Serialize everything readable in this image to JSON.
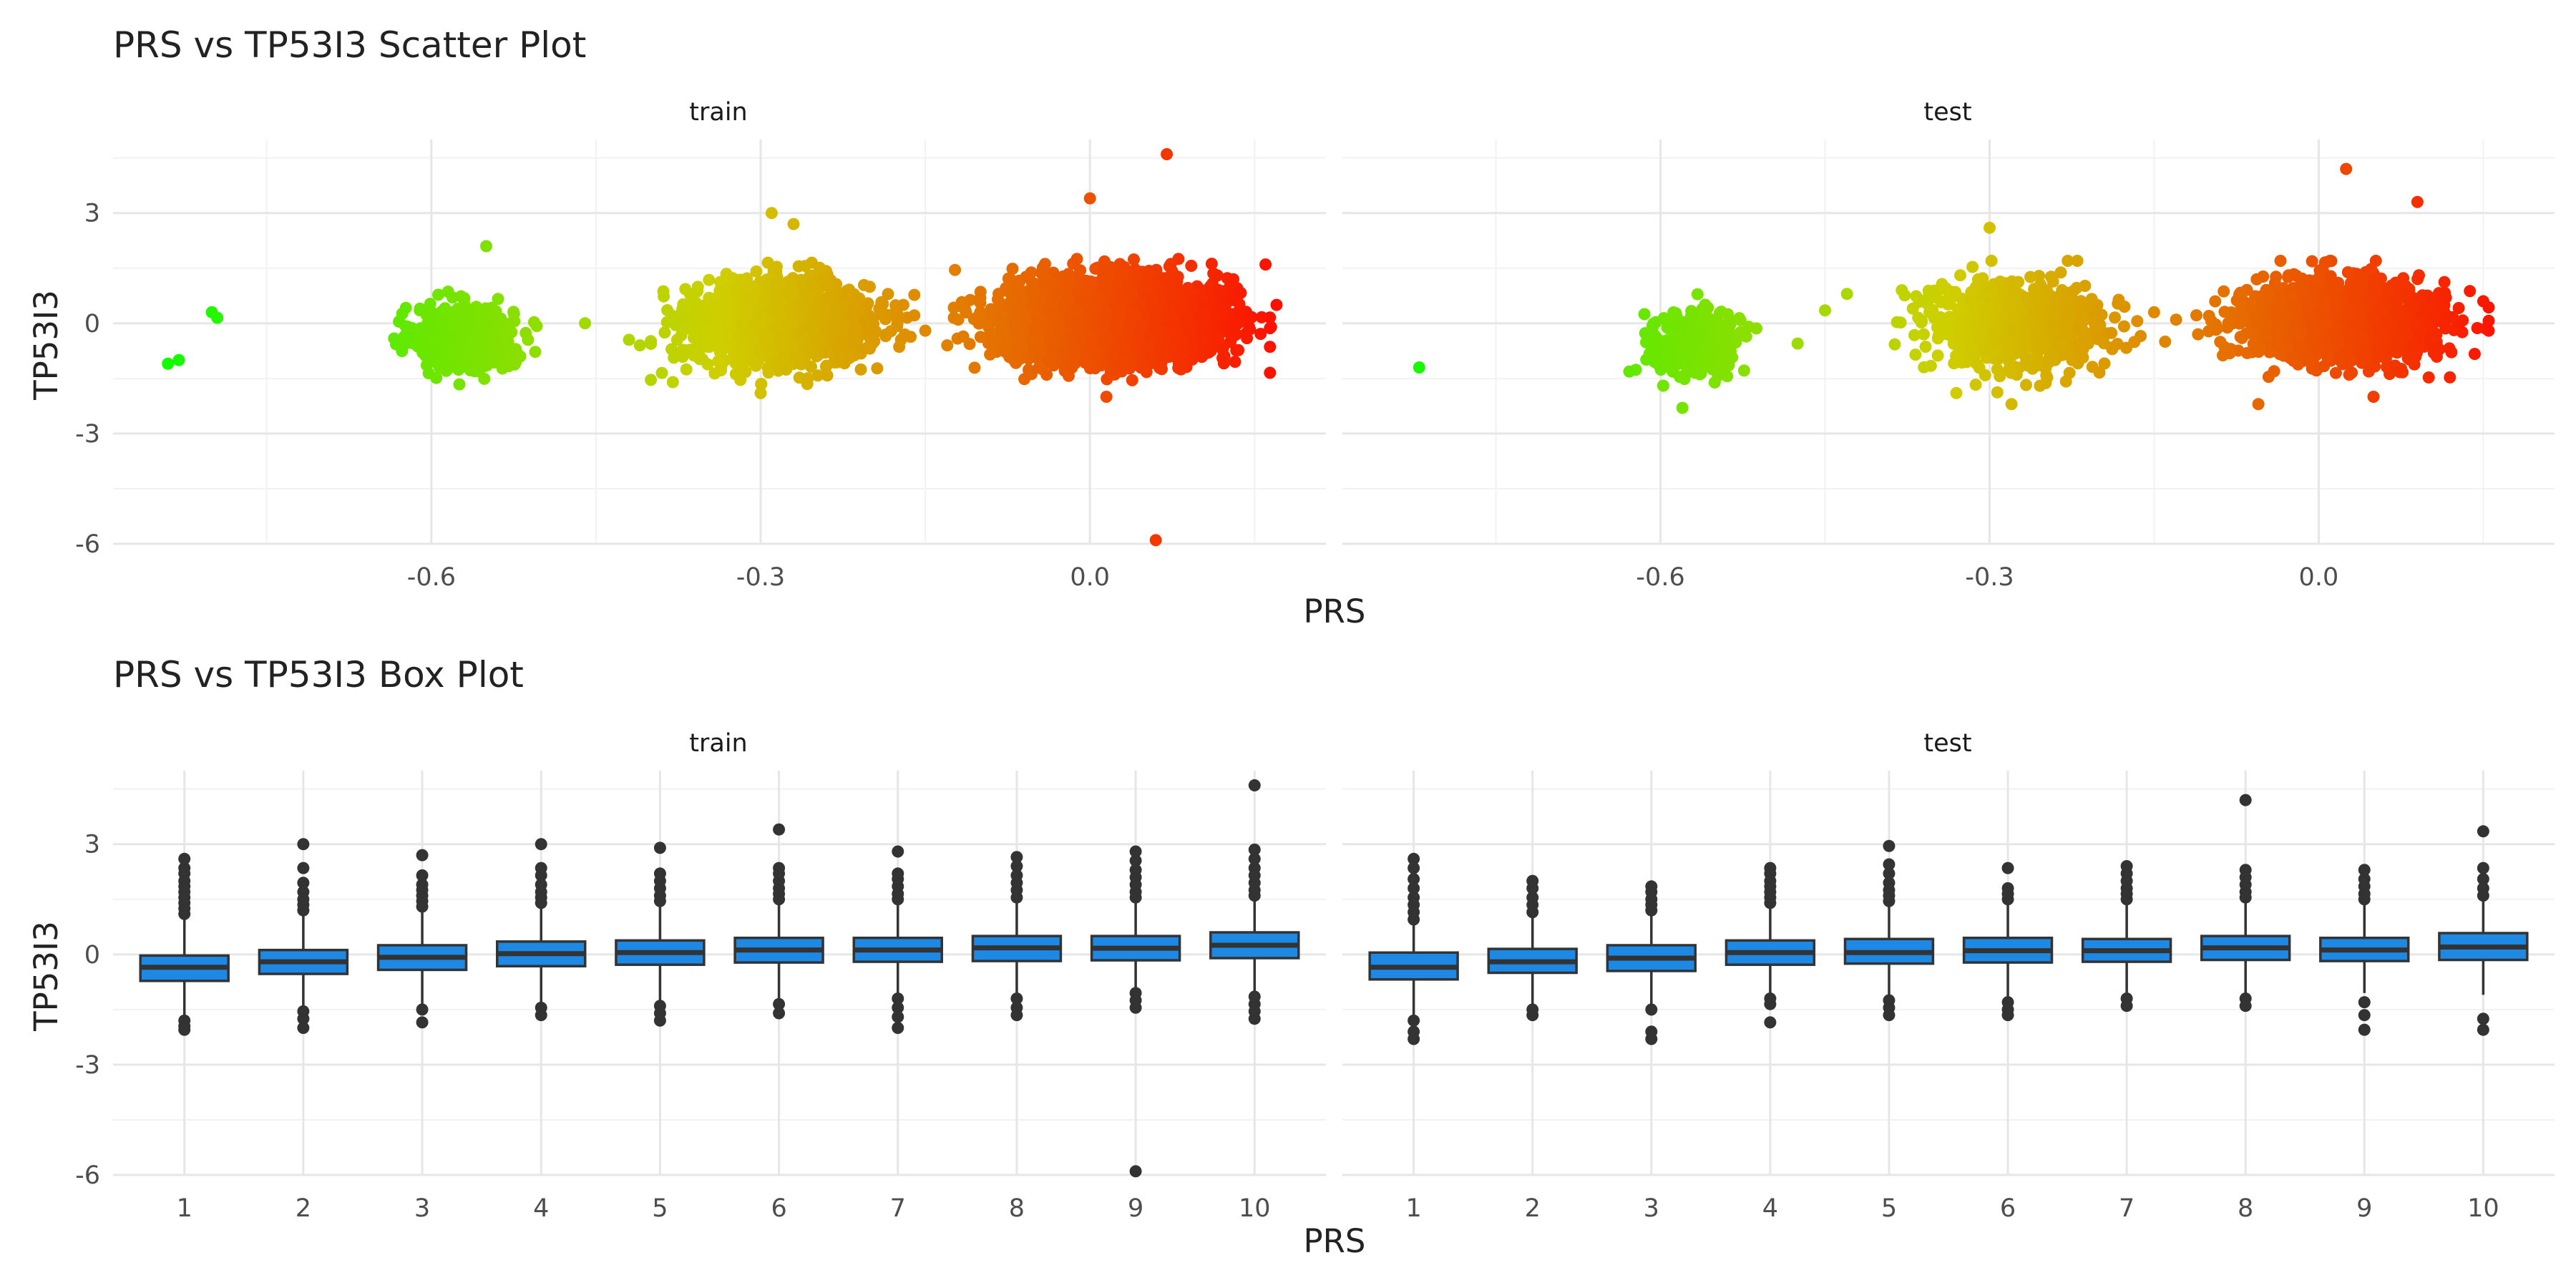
{
  "chart_data": [
    {
      "type": "scatter",
      "title": "PRS vs TP53I3 Scatter Plot",
      "xlabel": "PRS",
      "ylabel": "TP53I3",
      "x_ticks": [
        -0.6,
        -0.3,
        0.0
      ],
      "x_tick_labels": [
        "-0.6",
        "-0.3",
        "0.0"
      ],
      "y_ticks": [
        3,
        0,
        -3,
        -6
      ],
      "y_tick_labels": [
        "3",
        "0",
        "-3",
        "-6"
      ],
      "xlim": [
        -0.89,
        0.215
      ],
      "ylim": [
        -6.0,
        5.0
      ],
      "grid": true,
      "color_scale": {
        "low": "#00ff00",
        "mid": "#cfcf00",
        "high": "#ff0000",
        "variable": "PRS"
      },
      "facets": [
        {
          "label": "train",
          "clusters": [
            {
              "x_center": -0.57,
              "y_center": -0.4,
              "x_sd": 0.022,
              "y_sd": 0.42,
              "n": 700
            },
            {
              "x_center": -0.28,
              "y_center": 0.0,
              "x_sd": 0.04,
              "y_sd": 0.55,
              "n": 1600
            },
            {
              "x_center": 0.02,
              "y_center": 0.1,
              "x_sd": 0.048,
              "y_sd": 0.55,
              "n": 2600
            }
          ],
          "points": [
            [
              -0.84,
              -1.1
            ],
            [
              -0.83,
              -1.0
            ],
            [
              -0.8,
              0.3
            ],
            [
              -0.795,
              0.15
            ],
            [
              -0.46,
              0.0
            ],
            [
              -0.42,
              -0.45
            ],
            [
              -0.41,
              -0.6
            ],
            [
              -0.39,
              -1.35
            ],
            [
              -0.38,
              -1.6
            ],
            [
              -0.35,
              0.1
            ],
            [
              -0.33,
              0.4
            ],
            [
              -0.55,
              2.1
            ],
            [
              -0.29,
              3.0
            ],
            [
              -0.27,
              2.7
            ],
            [
              -0.3,
              -1.9
            ],
            [
              -0.17,
              0.5
            ],
            [
              -0.15,
              -0.2
            ],
            [
              -0.13,
              -0.6
            ],
            [
              -0.12,
              0.1
            ],
            [
              -0.09,
              -0.4
            ],
            [
              -0.1,
              0.3
            ],
            [
              0.0,
              3.4
            ],
            [
              0.015,
              -2.0
            ],
            [
              0.07,
              4.6
            ],
            [
              0.06,
              -5.9
            ],
            [
              0.16,
              1.6
            ],
            [
              0.165,
              -0.1
            ],
            [
              0.17,
              0.5
            ]
          ]
        },
        {
          "label": "test",
          "clusters": [
            {
              "x_center": -0.57,
              "y_center": -0.55,
              "x_sd": 0.022,
              "y_sd": 0.45,
              "n": 260
            },
            {
              "x_center": -0.28,
              "y_center": -0.1,
              "x_sd": 0.04,
              "y_sd": 0.6,
              "n": 750
            },
            {
              "x_center": 0.02,
              "y_center": 0.05,
              "x_sd": 0.045,
              "y_sd": 0.55,
              "n": 1300
            }
          ],
          "points": [
            [
              -0.82,
              -1.2
            ],
            [
              -0.475,
              -0.55
            ],
            [
              -0.45,
              0.35
            ],
            [
              -0.43,
              0.8
            ],
            [
              -0.38,
              0.9
            ],
            [
              -0.37,
              0.4
            ],
            [
              -0.36,
              -0.3
            ],
            [
              -0.58,
              -2.3
            ],
            [
              -0.3,
              2.6
            ],
            [
              -0.28,
              -2.2
            ],
            [
              -0.15,
              0.3
            ],
            [
              -0.14,
              -0.5
            ],
            [
              -0.13,
              0.1
            ],
            [
              -0.11,
              -0.3
            ],
            [
              -0.1,
              0.2
            ],
            [
              -0.07,
              -0.4
            ],
            [
              0.025,
              4.2
            ],
            [
              0.09,
              3.3
            ],
            [
              -0.055,
              -2.2
            ],
            [
              0.05,
              -2.0
            ],
            [
              0.15,
              0.6
            ],
            [
              0.155,
              -0.2
            ]
          ]
        }
      ]
    },
    {
      "type": "box",
      "title": "PRS vs TP53I3 Box Plot",
      "xlabel": "PRS",
      "ylabel": "TP53I3",
      "categories": [
        "1",
        "2",
        "3",
        "4",
        "5",
        "6",
        "7",
        "8",
        "9",
        "10"
      ],
      "y_ticks": [
        3,
        0,
        -3,
        -6
      ],
      "y_tick_labels": [
        "3",
        "0",
        "-3",
        "-6"
      ],
      "ylim": [
        -6.0,
        5.0
      ],
      "box_fill": "#1e88e5",
      "grid": true,
      "facets": [
        {
          "label": "train",
          "boxes": [
            {
              "q1": -0.72,
              "median": -0.35,
              "q3": -0.03,
              "whisker_low": -1.75,
              "whisker_high": 1.0,
              "outliers": [
                1.1,
                1.25,
                1.4,
                1.55,
                1.7,
                1.85,
                2.0,
                2.2,
                2.35,
                2.6,
                -1.8,
                -1.95,
                -2.05
              ]
            },
            {
              "q1": -0.53,
              "median": -0.2,
              "q3": 0.12,
              "whisker_low": -1.45,
              "whisker_high": 1.1,
              "outliers": [
                1.2,
                1.35,
                1.5,
                1.7,
                1.95,
                2.35,
                3.0,
                -1.55,
                -1.75,
                -2.0
              ]
            },
            {
              "q1": -0.42,
              "median": -0.08,
              "q3": 0.25,
              "whisker_low": -1.4,
              "whisker_high": 1.2,
              "outliers": [
                1.3,
                1.45,
                1.6,
                1.75,
                1.9,
                2.15,
                2.7,
                -1.5,
                -1.85
              ]
            },
            {
              "q1": -0.32,
              "median": 0.02,
              "q3": 0.35,
              "whisker_low": -1.35,
              "whisker_high": 1.3,
              "outliers": [
                1.4,
                1.55,
                1.7,
                1.9,
                2.15,
                2.35,
                3.0,
                -1.45,
                -1.65
              ]
            },
            {
              "q1": -0.28,
              "median": 0.05,
              "q3": 0.38,
              "whisker_low": -1.3,
              "whisker_high": 1.35,
              "outliers": [
                1.45,
                1.6,
                1.8,
                2.0,
                2.2,
                2.9,
                -1.4,
                -1.6,
                -1.8
              ]
            },
            {
              "q1": -0.22,
              "median": 0.12,
              "q3": 0.45,
              "whisker_low": -1.2,
              "whisker_high": 1.4,
              "outliers": [
                1.5,
                1.65,
                1.8,
                2.0,
                2.2,
                2.35,
                3.4,
                -1.35,
                -1.6
              ]
            },
            {
              "q1": -0.2,
              "median": 0.12,
              "q3": 0.45,
              "whisker_low": -1.1,
              "whisker_high": 1.4,
              "outliers": [
                1.5,
                1.65,
                1.85,
                2.05,
                2.2,
                2.8,
                -1.2,
                -1.45,
                -1.7,
                -2.0
              ]
            },
            {
              "q1": -0.18,
              "median": 0.18,
              "q3": 0.5,
              "whisker_low": -1.1,
              "whisker_high": 1.45,
              "outliers": [
                1.55,
                1.75,
                1.95,
                2.15,
                2.4,
                2.65,
                -1.2,
                -1.45,
                -1.65
              ]
            },
            {
              "q1": -0.16,
              "median": 0.17,
              "q3": 0.5,
              "whisker_low": -0.95,
              "whisker_high": 1.45,
              "outliers": [
                1.55,
                1.7,
                1.9,
                2.1,
                2.3,
                2.55,
                2.8,
                -1.05,
                -1.25,
                -1.45,
                -5.9
              ]
            },
            {
              "q1": -0.1,
              "median": 0.25,
              "q3": 0.6,
              "whisker_low": -1.0,
              "whisker_high": 1.5,
              "outliers": [
                1.6,
                1.75,
                1.95,
                2.15,
                2.35,
                2.6,
                2.85,
                4.6,
                -1.15,
                -1.35,
                -1.55,
                -1.75
              ]
            }
          ]
        },
        {
          "label": "test",
          "boxes": [
            {
              "q1": -0.68,
              "median": -0.35,
              "q3": 0.05,
              "whisker_low": -1.7,
              "whisker_high": 0.85,
              "outliers": [
                0.95,
                1.15,
                1.35,
                1.55,
                1.8,
                2.05,
                2.35,
                2.6,
                -1.8,
                -2.1,
                -2.3
              ]
            },
            {
              "q1": -0.5,
              "median": -0.2,
              "q3": 0.15,
              "whisker_low": -1.4,
              "whisker_high": 1.0,
              "outliers": [
                1.15,
                1.35,
                1.55,
                1.8,
                2.0,
                -1.5,
                -1.65
              ]
            },
            {
              "q1": -0.45,
              "median": -0.1,
              "q3": 0.25,
              "whisker_low": -1.35,
              "whisker_high": 1.1,
              "outliers": [
                1.2,
                1.35,
                1.5,
                1.7,
                1.85,
                -1.5,
                -2.1,
                -2.3
              ]
            },
            {
              "q1": -0.28,
              "median": 0.05,
              "q3": 0.38,
              "whisker_low": -1.1,
              "whisker_high": 1.3,
              "outliers": [
                1.4,
                1.55,
                1.7,
                1.85,
                2.0,
                2.2,
                2.35,
                -1.2,
                -1.35,
                -1.85
              ]
            },
            {
              "q1": -0.25,
              "median": 0.05,
              "q3": 0.42,
              "whisker_low": -1.15,
              "whisker_high": 1.35,
              "outliers": [
                1.45,
                1.6,
                1.75,
                1.95,
                2.2,
                2.45,
                2.95,
                -1.25,
                -1.45,
                -1.65
              ]
            },
            {
              "q1": -0.22,
              "median": 0.1,
              "q3": 0.45,
              "whisker_low": -1.15,
              "whisker_high": 1.4,
              "outliers": [
                1.5,
                1.65,
                1.8,
                2.35,
                -1.3,
                -1.5,
                -1.65
              ]
            },
            {
              "q1": -0.2,
              "median": 0.1,
              "q3": 0.42,
              "whisker_low": -1.05,
              "whisker_high": 1.4,
              "outliers": [
                1.5,
                1.65,
                1.8,
                2.0,
                2.2,
                2.4,
                -1.2,
                -1.4
              ]
            },
            {
              "q1": -0.15,
              "median": 0.18,
              "q3": 0.5,
              "whisker_low": -1.1,
              "whisker_high": 1.45,
              "outliers": [
                1.55,
                1.7,
                1.9,
                2.1,
                2.3,
                4.2,
                -1.2,
                -1.4
              ]
            },
            {
              "q1": -0.18,
              "median": 0.12,
              "q3": 0.45,
              "whisker_low": -1.05,
              "whisker_high": 1.4,
              "outliers": [
                1.5,
                1.65,
                1.85,
                2.05,
                2.3,
                -1.3,
                -1.65,
                -2.05
              ]
            },
            {
              "q1": -0.15,
              "median": 0.2,
              "q3": 0.58,
              "whisker_low": -1.1,
              "whisker_high": 1.5,
              "outliers": [
                1.6,
                1.8,
                2.05,
                2.35,
                3.35,
                -1.75,
                -2.05
              ]
            }
          ]
        }
      ]
    }
  ]
}
